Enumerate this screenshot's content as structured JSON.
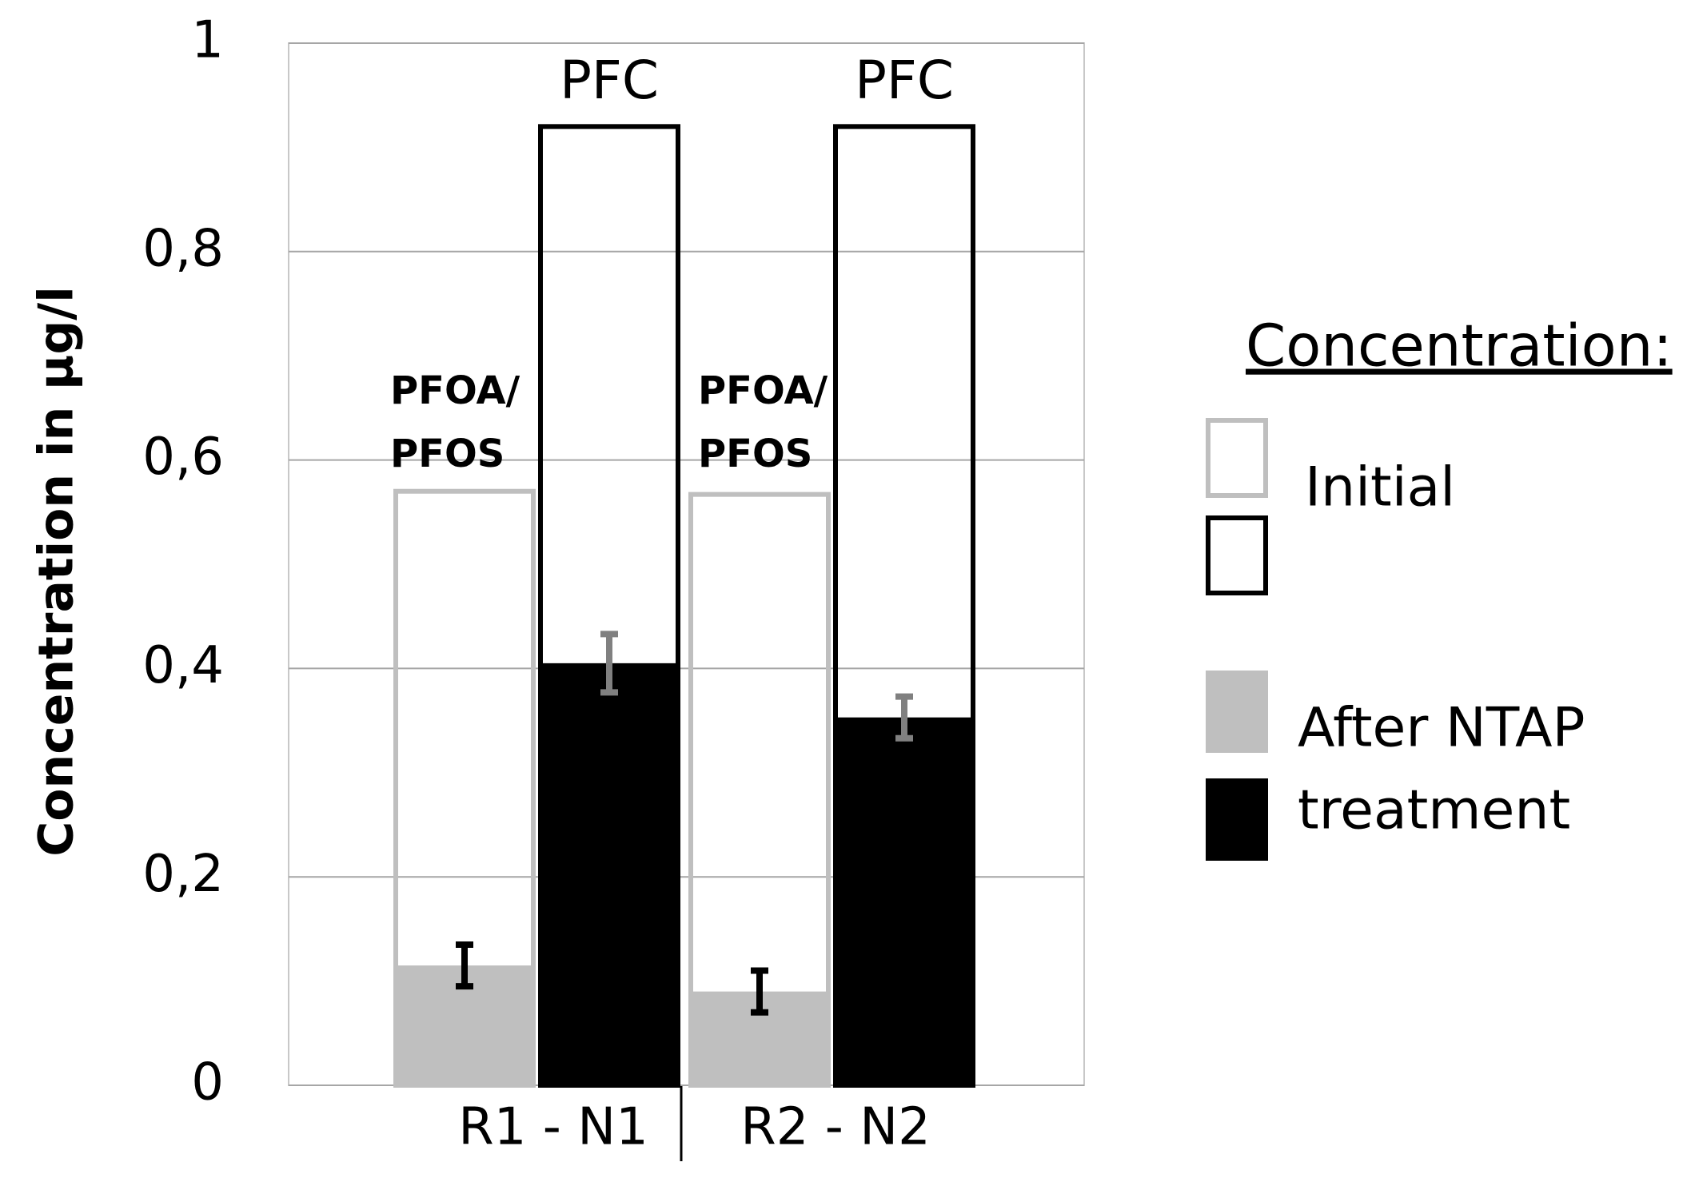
{
  "chart_data": {
    "type": "bar",
    "ylabel": "Concentration in µg/l",
    "ylim": [
      0,
      1
    ],
    "yticks": [
      0,
      {
        "value": 0.2,
        "label": "0,2"
      },
      {
        "value": 0.4,
        "label": "0,4"
      },
      {
        "value": 0.6,
        "label": "0,6"
      },
      {
        "value": 0.8,
        "label": "0,8"
      },
      1
    ],
    "grid": true,
    "categories": [
      "R1 - N1",
      "R2 - N2"
    ],
    "series": [
      {
        "substance": [
          "PFOA/",
          "PFOS"
        ],
        "color": "#bfbfbf",
        "error_color": "#000000",
        "initial": [
          0.57,
          0.567
        ],
        "after": [
          0.115,
          0.09
        ],
        "error": [
          0.02,
          0.02
        ]
      },
      {
        "substance": [
          "PFC"
        ],
        "color": "#000000",
        "error_color": "#808080",
        "initial": [
          0.92,
          0.92
        ],
        "after": [
          0.405,
          0.353
        ],
        "error": [
          0.028,
          0.02
        ]
      }
    ],
    "legend": {
      "title": "Concentration:",
      "initial": "Initial",
      "after": [
        "After NTAP",
        "treatment"
      ]
    }
  }
}
